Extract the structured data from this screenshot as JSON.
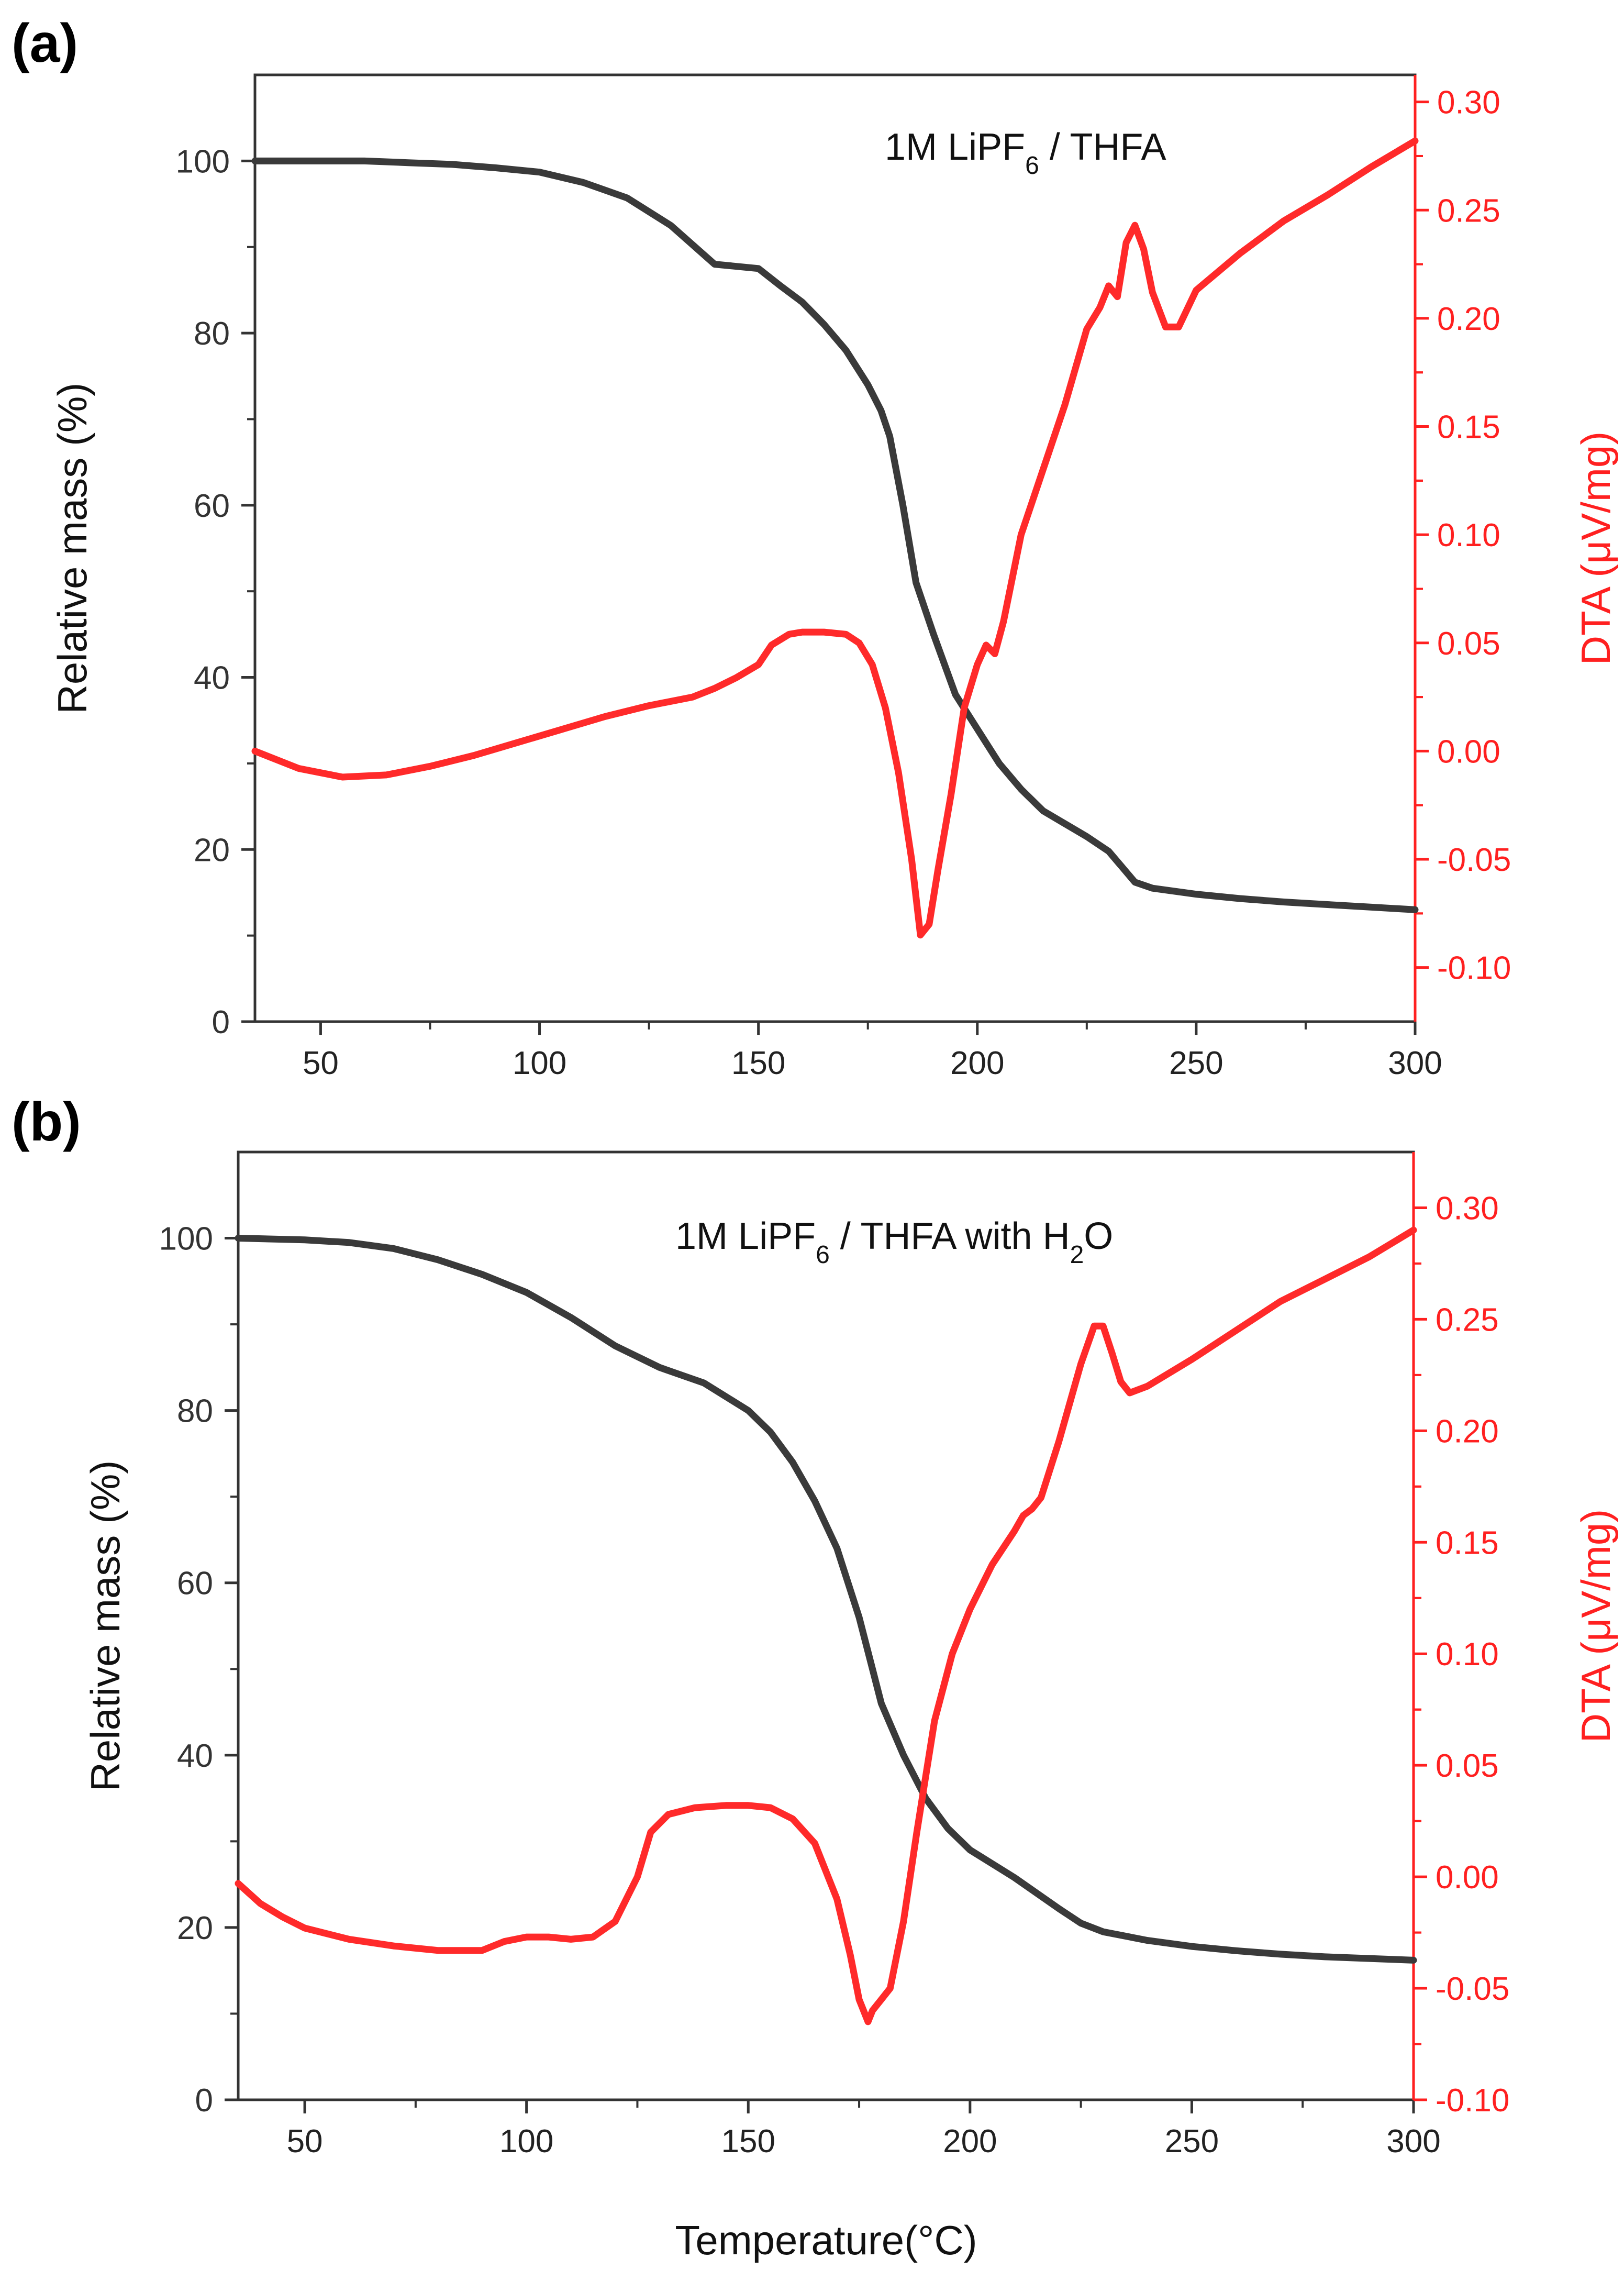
{
  "figure": {
    "x_axis_title": "Temperature(°C)"
  },
  "colors": {
    "mass_line": "#3a3a3a",
    "dta_line": "#ff2a2a",
    "right_axis": "#ff2020",
    "frame": "#333333"
  },
  "chart_data": [
    {
      "type": "line",
      "panel_label": "(a)",
      "annotation": {
        "main": "1M LiPF",
        "sub1": "6",
        "rest1": " / THFA",
        "sub2": "",
        "rest2": ""
      },
      "xlabel": "",
      "ylabel": "Relative mass (%)",
      "y2label": "DTA (μV/mg)",
      "xlim": [
        35,
        300
      ],
      "ylim": [
        0,
        110
      ],
      "y2lim": [
        -0.125,
        0.3125
      ],
      "x_ticks": [
        50,
        100,
        150,
        200,
        250,
        300
      ],
      "x_tick_labels": [
        "50",
        "100",
        "150",
        "200",
        "250",
        "300"
      ],
      "y_ticks": [
        0,
        20,
        40,
        60,
        80,
        100
      ],
      "y_tick_labels": [
        "0",
        "20",
        "40",
        "60",
        "80",
        "100"
      ],
      "y2_ticks": [
        -0.1,
        -0.05,
        0.0,
        0.05,
        0.1,
        0.15,
        0.2,
        0.25,
        0.3
      ],
      "y2_tick_labels": [
        "-0.10",
        "-0.05",
        "0.00",
        "0.05",
        "0.10",
        "0.15",
        "0.20",
        "0.25",
        "0.30"
      ],
      "series": [
        {
          "name": "Relative mass",
          "axis": "left",
          "x": [
            35,
            50,
            60,
            70,
            80,
            90,
            100,
            110,
            120,
            130,
            140,
            150,
            155,
            160,
            165,
            170,
            175,
            178,
            180,
            183,
            186,
            190,
            195,
            200,
            205,
            210,
            215,
            220,
            225,
            230,
            233,
            236,
            240,
            250,
            260,
            270,
            280,
            290,
            300
          ],
          "y": [
            100,
            100,
            100,
            99.8,
            99.6,
            99.2,
            98.7,
            97.5,
            95.7,
            92.5,
            88,
            87.5,
            85.5,
            83.6,
            81,
            78,
            74,
            71,
            68,
            60,
            51,
            45,
            38,
            34,
            30,
            27,
            24.5,
            23,
            21.5,
            19.8,
            18,
            16.2,
            15.5,
            14.8,
            14.3,
            13.9,
            13.6,
            13.3,
            13.0
          ]
        },
        {
          "name": "DTA",
          "axis": "right",
          "x": [
            35,
            45,
            55,
            65,
            75,
            85,
            95,
            105,
            115,
            125,
            135,
            140,
            145,
            150,
            153,
            157,
            160,
            165,
            170,
            173,
            176,
            179,
            182,
            185,
            187,
            189,
            191,
            194,
            197,
            200,
            202,
            204,
            206,
            210,
            215,
            220,
            225,
            228,
            230,
            232,
            234,
            236,
            238,
            240,
            243,
            246,
            250,
            260,
            270,
            280,
            290,
            300
          ],
          "y": [
            0.0,
            -0.008,
            -0.012,
            -0.011,
            -0.007,
            -0.002,
            0.004,
            0.01,
            0.016,
            0.021,
            0.025,
            0.029,
            0.034,
            0.04,
            0.049,
            0.054,
            0.055,
            0.055,
            0.054,
            0.05,
            0.04,
            0.02,
            -0.01,
            -0.05,
            -0.085,
            -0.08,
            -0.055,
            -0.02,
            0.02,
            0.04,
            0.049,
            0.045,
            0.06,
            0.1,
            0.13,
            0.16,
            0.195,
            0.205,
            0.215,
            0.21,
            0.235,
            0.243,
            0.232,
            0.212,
            0.196,
            0.196,
            0.213,
            0.23,
            0.245,
            0.257,
            0.27,
            0.282
          ]
        }
      ]
    },
    {
      "type": "line",
      "panel_label": "(b)",
      "annotation": {
        "main": "1M LiPF",
        "sub1": "6",
        "rest1": " / THFA with H",
        "sub2": "2",
        "rest2": "O"
      },
      "xlabel": "Temperature(°C)",
      "ylabel": "Relative mass (%)",
      "y2label": "DTA (μV/mg)",
      "xlim": [
        35,
        300
      ],
      "ylim": [
        0,
        110
      ],
      "y2lim": [
        -0.1,
        0.325
      ],
      "x_ticks": [
        50,
        100,
        150,
        200,
        250,
        300
      ],
      "x_tick_labels": [
        "50",
        "100",
        "150",
        "200",
        "250",
        "300"
      ],
      "y_ticks": [
        0,
        20,
        40,
        60,
        80,
        100
      ],
      "y_tick_labels": [
        "0",
        "20",
        "40",
        "60",
        "80",
        "100"
      ],
      "y2_ticks": [
        -0.1,
        -0.05,
        0.0,
        0.05,
        0.1,
        0.15,
        0.2,
        0.25,
        0.3
      ],
      "y2_tick_labels": [
        "-0.10",
        "-0.05",
        "0.00",
        "0.05",
        "0.10",
        "0.15",
        "0.20",
        "0.25",
        "0.30"
      ],
      "series": [
        {
          "name": "Relative mass",
          "axis": "left",
          "x": [
            35,
            50,
            60,
            70,
            80,
            90,
            100,
            110,
            120,
            130,
            140,
            150,
            155,
            160,
            165,
            170,
            175,
            178,
            180,
            185,
            190,
            195,
            200,
            210,
            220,
            225,
            230,
            240,
            250,
            260,
            270,
            280,
            290,
            300
          ],
          "y": [
            100,
            99.8,
            99.5,
            98.8,
            97.5,
            95.8,
            93.7,
            90.8,
            87.5,
            85,
            83.2,
            80,
            77.5,
            74,
            69.5,
            64,
            56,
            50,
            46,
            40,
            35,
            31.5,
            29,
            25.8,
            22.2,
            20.5,
            19.5,
            18.5,
            17.8,
            17.3,
            16.9,
            16.6,
            16.4,
            16.2
          ]
        },
        {
          "name": "DTA",
          "axis": "right",
          "x": [
            35,
            40,
            45,
            50,
            60,
            70,
            80,
            90,
            95,
            100,
            105,
            110,
            115,
            120,
            125,
            128,
            132,
            138,
            145,
            150,
            155,
            160,
            165,
            170,
            173,
            175,
            177,
            178,
            180,
            182,
            185,
            188,
            192,
            196,
            200,
            205,
            210,
            212,
            214,
            216,
            220,
            225,
            228,
            230,
            232,
            234,
            236,
            240,
            250,
            260,
            270,
            280,
            290,
            300
          ],
          "y": [
            -0.003,
            -0.012,
            -0.018,
            -0.023,
            -0.028,
            -0.031,
            -0.033,
            -0.033,
            -0.029,
            -0.027,
            -0.027,
            -0.028,
            -0.027,
            -0.02,
            0.0,
            0.02,
            0.028,
            0.031,
            0.032,
            0.032,
            0.031,
            0.026,
            0.015,
            -0.01,
            -0.035,
            -0.055,
            -0.065,
            -0.06,
            -0.055,
            -0.05,
            -0.02,
            0.02,
            0.07,
            0.1,
            0.12,
            0.14,
            0.155,
            0.162,
            0.165,
            0.17,
            0.195,
            0.23,
            0.247,
            0.247,
            0.235,
            0.222,
            0.217,
            0.22,
            0.232,
            0.245,
            0.258,
            0.268,
            0.278,
            0.29
          ]
        }
      ]
    }
  ]
}
